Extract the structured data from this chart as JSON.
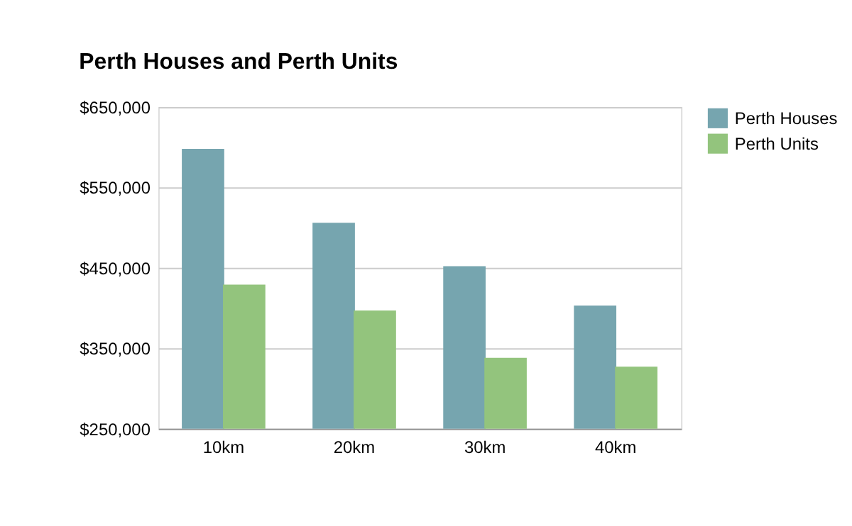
{
  "chart_data": {
    "type": "bar",
    "title": "Perth Houses and Perth Units",
    "categories": [
      "10km",
      "20km",
      "30km",
      "40km"
    ],
    "series": [
      {
        "name": "Perth Houses",
        "color": "#76a5af",
        "values": [
          598000,
          506000,
          452000,
          403000
        ]
      },
      {
        "name": "Perth Units",
        "color": "#93c47d",
        "values": [
          429000,
          397000,
          338000,
          327000
        ]
      }
    ],
    "ylim": [
      250000,
      650000
    ],
    "yticks": [
      {
        "value": 250000,
        "label": "$250,000"
      },
      {
        "value": 350000,
        "label": "$350,000"
      },
      {
        "value": 450000,
        "label": "$450,000"
      },
      {
        "value": 550000,
        "label": "$550,000"
      },
      {
        "value": 650000,
        "label": "$650,000"
      }
    ],
    "grid": "y",
    "legend": "right"
  }
}
